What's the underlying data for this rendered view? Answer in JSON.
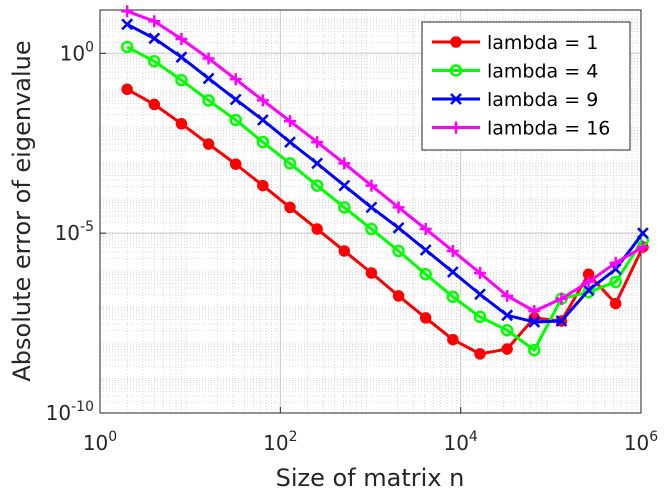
{
  "chart_data": {
    "type": "line",
    "x_label": "Size of matrix n",
    "y_label": "Absolute error of eigenvalue",
    "x": [
      2,
      4,
      8,
      16,
      32,
      64,
      128,
      256,
      512,
      1024,
      2048,
      4096,
      8192,
      16384,
      32768,
      65536,
      131072,
      262144,
      524288,
      1048576
    ],
    "series": [
      {
        "name": "lambda = 1",
        "color": "#ff0000",
        "marker": "filled-circle",
        "values": [
          0.1,
          0.038,
          0.011,
          0.003,
          0.00083,
          0.00021,
          5.2e-05,
          1.3e-05,
          3.2e-06,
          7.8e-07,
          1.8e-07,
          4.4e-08,
          1.1e-08,
          4.4e-09,
          6e-09,
          4.4e-08,
          3.6e-08,
          7.2e-07,
          1.1e-07,
          4.1e-06
        ]
      },
      {
        "name": "lambda = 4",
        "color": "#00ff00",
        "marker": "open-circle",
        "values": [
          1.5,
          0.6,
          0.18,
          0.049,
          0.014,
          0.0034,
          0.00087,
          0.00021,
          5.2e-05,
          1.3e-05,
          3.2e-06,
          7.2e-07,
          1.7e-07,
          4.7e-08,
          2e-08,
          5.6e-09,
          1.5e-07,
          2.3e-07,
          4.4e-07,
          6.5e-06
        ]
      },
      {
        "name": "lambda = 9",
        "color": "#0000ff",
        "marker": "x",
        "values": [
          6.4,
          2.6,
          0.78,
          0.2,
          0.052,
          0.014,
          0.0034,
          0.00087,
          0.00021,
          5.2e-05,
          1.4e-05,
          3.4e-06,
          8.3e-07,
          2e-07,
          5.2e-08,
          3.4e-08,
          3.6e-08,
          2.6e-07,
          1e-06,
          1e-05
        ]
      },
      {
        "name": "lambda = 16",
        "color": "#ff00ff",
        "marker": "plus",
        "values": [
          14.8,
          7.8,
          2.5,
          0.72,
          0.19,
          0.049,
          0.013,
          0.0034,
          0.00087,
          0.00021,
          5.2e-05,
          1.3e-05,
          3.2e-06,
          7.8e-07,
          1.8e-07,
          6.8e-08,
          1.5e-07,
          4.4e-07,
          1.5e-06,
          4.1e-06
        ]
      }
    ],
    "x_scale": "log",
    "y_scale": "log",
    "xlim": [
      1,
      1000000
    ],
    "ylim": [
      1e-10,
      16
    ],
    "xticks": [
      {
        "value": 1,
        "label": "10^0"
      },
      {
        "value": 100,
        "label": "10^2"
      },
      {
        "value": 10000,
        "label": "10^4"
      },
      {
        "value": 1000000,
        "label": "10^6"
      }
    ],
    "yticks": [
      {
        "value": 1e-10,
        "label": "10^-10"
      },
      {
        "value": 1e-05,
        "label": "10^-5"
      },
      {
        "value": 1,
        "label": "10^0"
      }
    ],
    "grid": true,
    "minor_grid": true,
    "legend": "top-right"
  }
}
